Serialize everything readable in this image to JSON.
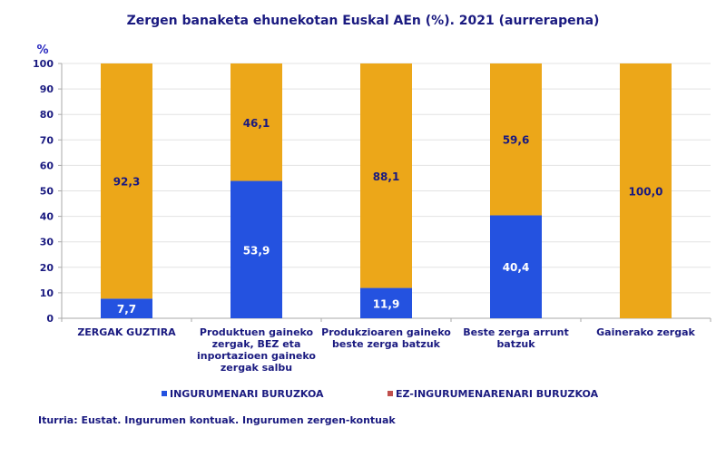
{
  "chart_data": {
    "type": "bar",
    "stacked": true,
    "title": "Zergen banaketa ehunekotan Euskal AEn (%). 2021 (aurrerapena)",
    "ylabel": "%",
    "xlabel": "",
    "ylim": [
      0,
      100
    ],
    "yticks": [
      0,
      10,
      20,
      30,
      40,
      50,
      60,
      70,
      80,
      90,
      100
    ],
    "grid": true,
    "legend_position": "bottom",
    "categories": [
      [
        "ZERGAK GUZTIRA"
      ],
      [
        "Produktuen gaineko",
        "zergak, BEZ eta",
        "inportazioen gaineko",
        "zergak salbu"
      ],
      [
        "Produkzioaren gaineko",
        "beste zerga batzuk"
      ],
      [
        "Beste zerga arrunt",
        "batzuk"
      ],
      [
        "Gainerako zergak"
      ]
    ],
    "series": [
      {
        "name": "INGURUMENARI BURUZKOA",
        "values": [
          7.7,
          53.9,
          11.9,
          40.4,
          0
        ],
        "labels": [
          "7,7",
          "53,9",
          "11,9",
          "40,4",
          ""
        ],
        "color": "#2452e0",
        "legend_color": "#2452e0",
        "label_color": "#ffffff"
      },
      {
        "name": "EZ-INGURUMENARENARI BURUZKOA",
        "values": [
          92.3,
          46.1,
          88.1,
          59.6,
          100.0
        ],
        "labels": [
          "92,3",
          "46,1",
          "88,1",
          "59,6",
          "100,0"
        ],
        "color": "#eca719",
        "legend_color": "#c0504d",
        "label_color": "#1a1a80"
      }
    ]
  },
  "source": "Iturria: Eustat. Ingurumen kontuak. Ingurumen zergen-kontuak"
}
